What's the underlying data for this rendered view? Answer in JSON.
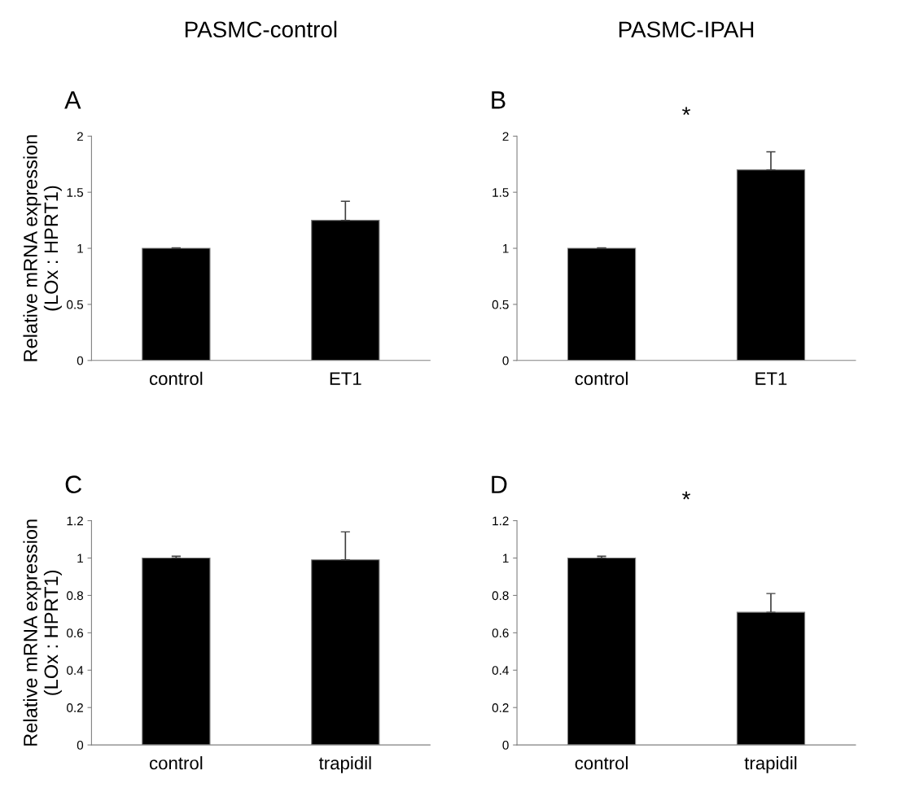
{
  "chart_data": [
    {
      "type": "bar",
      "title": "A",
      "subtitle": "PASMC-control",
      "ylabel": "Relative mRNA expression\n(LOx : HPRT1)",
      "categories": [
        "control",
        "ET1"
      ],
      "values": [
        1.0,
        1.25
      ],
      "errors": [
        0.005,
        0.17
      ],
      "color": "#000000",
      "ylim": [
        0,
        2
      ],
      "yticks": [
        0,
        0.5,
        1,
        1.5,
        2
      ],
      "grid": false
    },
    {
      "type": "bar",
      "title": "B",
      "subtitle": "PASMC-IPAH",
      "annotations": [
        "*"
      ],
      "categories": [
        "control",
        "ET1"
      ],
      "values": [
        1.0,
        1.7
      ],
      "errors": [
        0.005,
        0.16
      ],
      "color": "#000000",
      "ylim": [
        0,
        2
      ],
      "yticks": [
        0,
        0.5,
        1,
        1.5,
        2
      ],
      "grid": false
    },
    {
      "type": "bar",
      "title": "C",
      "ylabel": "Relative mRNA expression\n(LOx : HPRT1)",
      "categories": [
        "control",
        "trapidil"
      ],
      "values": [
        1.0,
        0.99
      ],
      "errors": [
        0.01,
        0.15
      ],
      "color": "#000000",
      "ylim": [
        0,
        1.2
      ],
      "yticks": [
        0,
        0.2,
        0.4,
        0.6,
        0.8,
        1,
        1.2
      ],
      "grid": false
    },
    {
      "type": "bar",
      "title": "D",
      "annotations": [
        "*"
      ],
      "categories": [
        "control",
        "trapidil"
      ],
      "values": [
        1.0,
        0.71
      ],
      "errors": [
        0.01,
        0.1
      ],
      "color": "#000000",
      "ylim": [
        0,
        1.2
      ],
      "yticks": [
        0,
        0.2,
        0.4,
        0.6,
        0.8,
        1,
        1.2
      ],
      "grid": false
    }
  ]
}
